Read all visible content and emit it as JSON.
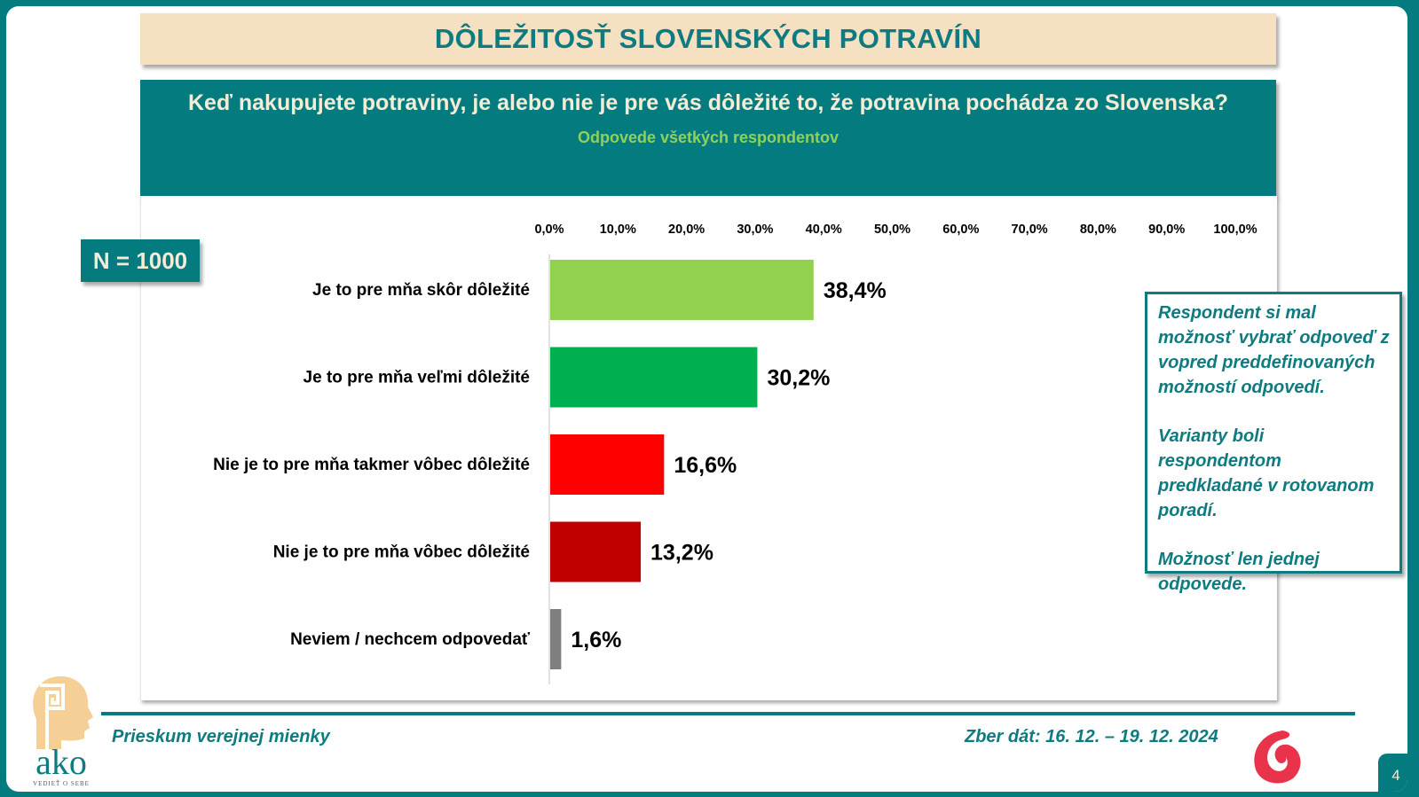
{
  "header": {
    "title": "DÔLEŽITOSŤ SLOVENSKÝCH POTRAVÍN",
    "question": "Keď nakupujete potraviny, je alebo nie je pre vás dôležité to, že potravina pochádza zo Slovenska?",
    "subtitle": "Odpovede všetkých respondentov"
  },
  "sample": {
    "label": "N = 1000"
  },
  "note": {
    "paragraphs": [
      "Respondent si mal možnosť vybrať  odpoveď z vopred preddefinovaných možností odpovedí.",
      "Varianty boli respondentom predkladané v rotovanom poradí.",
      "Možnosť len jednej odpovede."
    ]
  },
  "footer": {
    "left": "Prieskum verejnej mienky",
    "right": "Zber dát: 16. 12. – 19. 12. 2024",
    "page": "4",
    "logo_text": "ako",
    "logo_tagline": "VEDIEŤ O SEBE"
  },
  "colors": {
    "teal": "#047b7f",
    "beige": "#f6e0c2"
  },
  "chart_data": {
    "type": "bar",
    "orientation": "horizontal",
    "title": "DÔLEŽITOSŤ SLOVENSKÝCH POTRAVÍN",
    "xlabel": "",
    "ylabel": "",
    "xlim": [
      0,
      100
    ],
    "x_ticks": [
      "0,0%",
      "10,0%",
      "20,0%",
      "30,0%",
      "40,0%",
      "50,0%",
      "60,0%",
      "70,0%",
      "80,0%",
      "90,0%",
      "100,0%"
    ],
    "categories": [
      "Je to pre mňa skôr dôležité",
      "Je to pre mňa veľmi dôležité",
      "Nie je to pre mňa takmer vôbec dôležité",
      "Nie je to pre mňa vôbec dôležité",
      "Neviem / nechcem odpovedať"
    ],
    "values": [
      38.4,
      30.2,
      16.6,
      13.2,
      1.6
    ],
    "labels": [
      "38,4%",
      "30,2%",
      "16,6%",
      "13,2%",
      "1,6%"
    ],
    "bar_colors": [
      "#92d050",
      "#00b050",
      "#ff0000",
      "#c00000",
      "#7f7f7f"
    ],
    "grid": false,
    "legend": "none"
  }
}
